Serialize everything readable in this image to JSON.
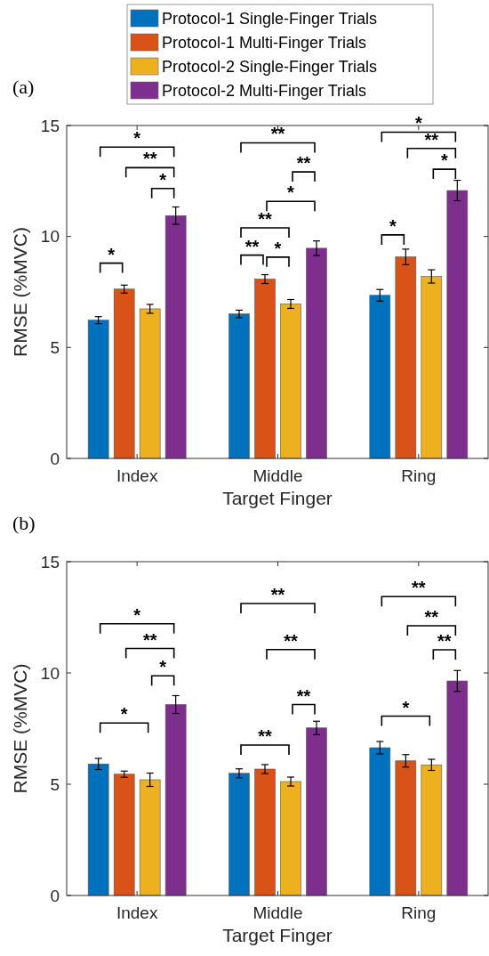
{
  "chart_data": [
    {
      "type": "bar",
      "title": "(a)",
      "xlabel": "Target Finger",
      "ylabel": "RMSE (%MVC)",
      "categories": [
        "Index",
        "Middle",
        "Ring"
      ],
      "ylim": [
        0,
        15
      ],
      "yticks": [
        0,
        5,
        10,
        15
      ],
      "legend": "top",
      "series": [
        {
          "name": "Protocol-1 Single-Finger Trials",
          "color": "#0072bd",
          "values": [
            6.23,
            6.51,
            7.35
          ],
          "errors": [
            0.16,
            0.17,
            0.26
          ]
        },
        {
          "name": "Protocol-1 Multi-Finger Trials",
          "color": "#d95319",
          "values": [
            7.63,
            8.08,
            9.08
          ],
          "errors": [
            0.18,
            0.2,
            0.35
          ]
        },
        {
          "name": "Protocol-2 Single-Finger Trials",
          "color": "#edb120",
          "values": [
            6.74,
            6.96,
            8.2
          ],
          "errors": [
            0.2,
            0.2,
            0.3
          ]
        },
        {
          "name": "Protocol-2 Multi-Finger Trials",
          "color": "#7e2f8e",
          "values": [
            10.94,
            9.47,
            12.07
          ],
          "errors": [
            0.39,
            0.33,
            0.46
          ]
        }
      ],
      "annotations": [
        "*",
        "*",
        "**",
        "*",
        "**",
        "*",
        "**",
        "*",
        "**",
        "**",
        "*",
        "*",
        "**",
        "*"
      ]
    },
    {
      "type": "bar",
      "title": "(b)",
      "xlabel": "Target Finger",
      "ylabel": "RMSE (%MVC)",
      "categories": [
        "Index",
        "Middle",
        "Ring"
      ],
      "ylim": [
        0,
        15
      ],
      "yticks": [
        0,
        5,
        10,
        15
      ],
      "series": [
        {
          "color": "#0072bd",
          "values": [
            5.91,
            5.49,
            6.64
          ],
          "errors": [
            0.25,
            0.2,
            0.28
          ]
        },
        {
          "color": "#d95319",
          "values": [
            5.45,
            5.68,
            6.05
          ],
          "errors": [
            0.14,
            0.2,
            0.28
          ]
        },
        {
          "color": "#edb120",
          "values": [
            5.2,
            5.12,
            5.87
          ],
          "errors": [
            0.3,
            0.2,
            0.25
          ]
        },
        {
          "color": "#7e2f8e",
          "values": [
            8.58,
            7.53,
            9.64
          ],
          "errors": [
            0.4,
            0.3,
            0.47
          ]
        }
      ],
      "annotations": [
        "*",
        "*",
        "**",
        "*",
        "**",
        "**",
        "**",
        "**",
        "*",
        "**",
        "**",
        "**"
      ]
    }
  ]
}
